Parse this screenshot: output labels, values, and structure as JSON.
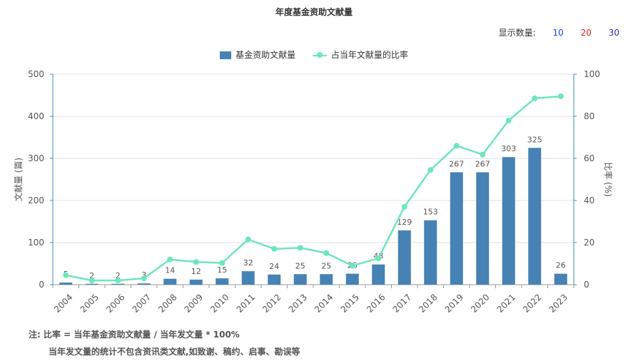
{
  "title": "年度基金资助文献量",
  "display_count": {
    "label": "显示数量:",
    "options": [
      "10",
      "20",
      "30"
    ],
    "colors": [
      "#1e3cff",
      "#e02020",
      "#3030a0"
    ]
  },
  "legend": {
    "bar_label": "基金资助文献量",
    "line_label": "占当年文献量的比率"
  },
  "colors": {
    "bar": "#4682b4",
    "line": "#6ee6bc",
    "grid": "#e0e0e0",
    "axis": "#3a8fb7"
  },
  "notes": {
    "line1": "注:  比率 = 当年基金资助文献量 / 当年发文量 * 100%",
    "line2": "当年发文量的统计不包含资讯类文献,如致谢、稿约、启事、勘误等"
  },
  "chart_data": {
    "type": "bar",
    "categories": [
      "2004",
      "2005",
      "2006",
      "2007",
      "2008",
      "2009",
      "2010",
      "2011",
      "2012",
      "2013",
      "2014",
      "2015",
      "2016",
      "2017",
      "2018",
      "2019",
      "2020",
      "2021",
      "2022",
      "2023"
    ],
    "series": [
      {
        "name": "基金资助文献量",
        "type": "bar",
        "values": [
          5,
          2,
          2,
          3,
          14,
          12,
          15,
          32,
          24,
          25,
          25,
          26,
          48,
          129,
          153,
          267,
          267,
          303,
          325,
          26
        ]
      },
      {
        "name": "占当年文献量的比率",
        "type": "line",
        "values": [
          4.5,
          2,
          2,
          3,
          12,
          10.8,
          10.3,
          21.5,
          17,
          17.5,
          15,
          9,
          12.5,
          37,
          54.5,
          66,
          61.8,
          78,
          88.5,
          89.5
        ]
      }
    ],
    "ylabel_left": "文献量 (篇)",
    "ylabel_right": "比率 (%)",
    "ylim_left": [
      0,
      500
    ],
    "ylim_right": [
      0,
      100
    ],
    "yticks_left": [
      "0",
      "100",
      "200",
      "300",
      "400",
      "500"
    ],
    "yticks_right": [
      "0",
      "20",
      "40",
      "60",
      "80",
      "100"
    ],
    "grid": true,
    "legend_position": "top-center"
  }
}
